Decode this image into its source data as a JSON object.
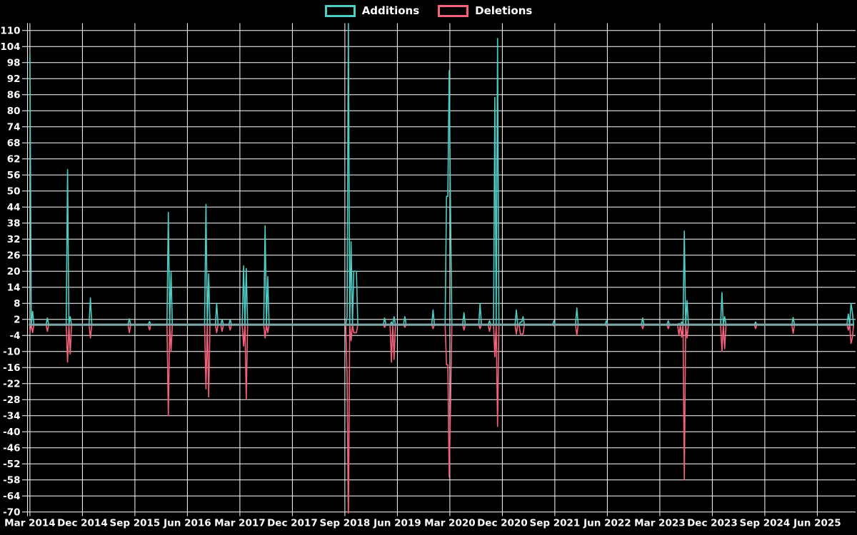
{
  "page": {
    "background": "#000000"
  },
  "legend": {
    "items": [
      {
        "label": "Additions",
        "color": "#4ECDC4"
      },
      {
        "label": "Deletions",
        "color": "#F4617C"
      }
    ]
  },
  "chart_data": {
    "type": "line",
    "title": "",
    "description": "Weekly code additions and deletions per week, Mar 2014 through late 2025; lines sit at 0 with sharp spikes",
    "legend_position": "top-center",
    "grid": true,
    "background": "#000000",
    "colors": {
      "additions": "#4ECDC4",
      "deletions": "#F4617C",
      "zero_baseline": "#7FA6A8",
      "grid": "#FFFFFF",
      "text": "#FFFFFF"
    },
    "y_axis": {
      "min": -70,
      "max": 110,
      "tick_step": 6,
      "ticks": [
        110,
        104,
        98,
        92,
        86,
        80,
        74,
        68,
        62,
        56,
        50,
        44,
        38,
        32,
        26,
        20,
        14,
        8,
        2,
        -4,
        -10,
        -16,
        -22,
        -28,
        -34,
        -40,
        -46,
        -52,
        -58,
        -64,
        -70
      ]
    },
    "x_axis": {
      "tick_labels": [
        "Mar 2014",
        "Dec 2014",
        "Sep 2015",
        "Jun 2016",
        "Mar 2017",
        "Dec 2017",
        "Sep 2018",
        "Jun 2019",
        "Mar 2020",
        "Dec 2020",
        "Sep 2021",
        "Jun 2022",
        "Mar 2023",
        "Dec 2023",
        "Sep 2024",
        "Jun 2025"
      ],
      "tick_interval_months": 9,
      "first_tick": "2014-03",
      "last_data": "2025-12"
    },
    "series_names": [
      "Additions",
      "Deletions"
    ],
    "points_unit": "t = months since 2014-03; add/del = weekly lines added/deleted; values between spikes are 0",
    "spikes": [
      {
        "date": "2014-03",
        "t": 0,
        "add": 101,
        "del": -3
      },
      {
        "date": "2014-03",
        "t": 0.47,
        "add": 5,
        "del": -3
      },
      {
        "date": "2014-06",
        "t": 3.06,
        "add": 2.5,
        "del": -2.5
      },
      {
        "date": "2014-09",
        "t": 6.44,
        "add": 58,
        "del": -14
      },
      {
        "date": "2014-10",
        "t": 6.89,
        "add": 3,
        "del": -11
      },
      {
        "date": "2015-01",
        "t": 10.44,
        "add": 10,
        "del": -5
      },
      {
        "date": "2015-08",
        "t": 17.06,
        "add": 2.2,
        "del": -3
      },
      {
        "date": "2015-11",
        "t": 20.49,
        "add": 1.2,
        "del": -2
      },
      {
        "date": "2016-03",
        "t": 23.84,
        "add": 42,
        "del": -34
      },
      {
        "date": "2016-03",
        "t": 24.16,
        "add": 20,
        "del": -10
      },
      {
        "date": "2016-09",
        "t": 30.16,
        "add": 45,
        "del": -24
      },
      {
        "date": "2016-09",
        "t": 30.65,
        "add": 19,
        "del": -27
      },
      {
        "date": "2016-11",
        "t": 32.0,
        "add": 8,
        "del": -3
      },
      {
        "date": "2016-12",
        "t": 32.85,
        "add": 2,
        "del": -2.5
      },
      {
        "date": "2017-01",
        "t": 34.44,
        "add": 2,
        "del": -2
      },
      {
        "date": "2017-03",
        "t": 36.65,
        "add": 22,
        "del": -8
      },
      {
        "date": "2017-04",
        "t": 37.08,
        "add": 21,
        "del": -28
      },
      {
        "date": "2017-07",
        "t": 40.32,
        "add": 37,
        "del": -5
      },
      {
        "date": "2017-08",
        "t": 40.69,
        "add": 18,
        "del": -3
      },
      {
        "date": "2018-09",
        "t": 54.28,
        "add": 3,
        "del": -19
      },
      {
        "date": "2018-09",
        "t": 54.61,
        "add": 113,
        "del": -75,
        "clipped": true
      },
      {
        "date": "2018-10",
        "t": 54.96,
        "add": 31,
        "del": -6
      },
      {
        "date": "2018-10",
        "t": 55.45,
        "add": 20,
        "del": -3,
        "w": 3
      },
      {
        "date": "2018-11",
        "t": 56.0,
        "add": 15,
        "del": -1
      },
      {
        "date": "2019-03",
        "t": 60.78,
        "add": 2.5,
        "del": -1
      },
      {
        "date": "2019-05",
        "t": 62.04,
        "add": 1,
        "del": -14
      },
      {
        "date": "2019-05",
        "t": 62.49,
        "add": 3,
        "del": -13
      },
      {
        "date": "2019-07",
        "t": 64.33,
        "add": 3,
        "del": -1
      },
      {
        "date": "2019-12",
        "t": 69.19,
        "add": 5.5,
        "del": -1.5
      },
      {
        "date": "2020-02",
        "t": 71.37,
        "add": 48,
        "del": -15,
        "w": 2
      },
      {
        "date": "2020-03",
        "t": 71.84,
        "add": 95,
        "del": -57
      },
      {
        "date": "2020-03",
        "t": 72.23,
        "add": 44,
        "del": -31
      },
      {
        "date": "2020-05",
        "t": 74.49,
        "add": 4.5,
        "del": -2
      },
      {
        "date": "2020-08",
        "t": 77.27,
        "add": 8,
        "del": -1.5
      },
      {
        "date": "2020-09",
        "t": 78.9,
        "add": 1.5,
        "del": -2.5
      },
      {
        "date": "2020-10",
        "t": 79.7,
        "add": 85,
        "del": -12
      },
      {
        "date": "2020-11",
        "t": 80.1,
        "add": 107,
        "del": -38
      },
      {
        "date": "2021-02",
        "t": 83.47,
        "add": 5.5,
        "del": -3.5
      },
      {
        "date": "2021-03",
        "t": 84.04,
        "add": 1,
        "del": -3.5,
        "w": 3
      },
      {
        "date": "2021-03",
        "t": 84.5,
        "add": 3,
        "del": -3
      },
      {
        "date": "2021-08",
        "t": 89.8,
        "add": 1.5,
        "del": -0.5
      },
      {
        "date": "2021-12",
        "t": 93.72,
        "add": 6.3,
        "del": -4
      },
      {
        "date": "2022-05",
        "t": 98.74,
        "add": 1.5,
        "del": -0.5
      },
      {
        "date": "2022-12",
        "t": 105.1,
        "add": 2.5,
        "del": -1.5
      },
      {
        "date": "2023-04",
        "t": 109.47,
        "add": 1.5,
        "del": -1.5
      },
      {
        "date": "2023-06",
        "t": 111.29,
        "add": 0.5,
        "del": -4
      },
      {
        "date": "2023-06",
        "t": 111.71,
        "add": 1,
        "del": -4.7
      },
      {
        "date": "2023-07",
        "t": 112.24,
        "add": 35,
        "del": -58
      },
      {
        "date": "2023-07",
        "t": 112.57,
        "add": 9,
        "del": -5
      },
      {
        "date": "2024-01",
        "t": 118.69,
        "add": 12,
        "del": -10
      },
      {
        "date": "2024-02",
        "t": 119.06,
        "add": 3,
        "del": -9
      },
      {
        "date": "2024-07",
        "t": 124.44,
        "add": 1,
        "del": -1.5
      },
      {
        "date": "2025-01",
        "t": 130.81,
        "add": 2.7,
        "del": -3.2
      },
      {
        "date": "2025-11",
        "t": 140.24,
        "add": 4,
        "del": -2
      },
      {
        "date": "2025-11",
        "t": 140.67,
        "add": 8,
        "del": -7
      },
      {
        "date": "2025-12",
        "t": 141.04,
        "add": 5,
        "del": -5
      }
    ]
  }
}
